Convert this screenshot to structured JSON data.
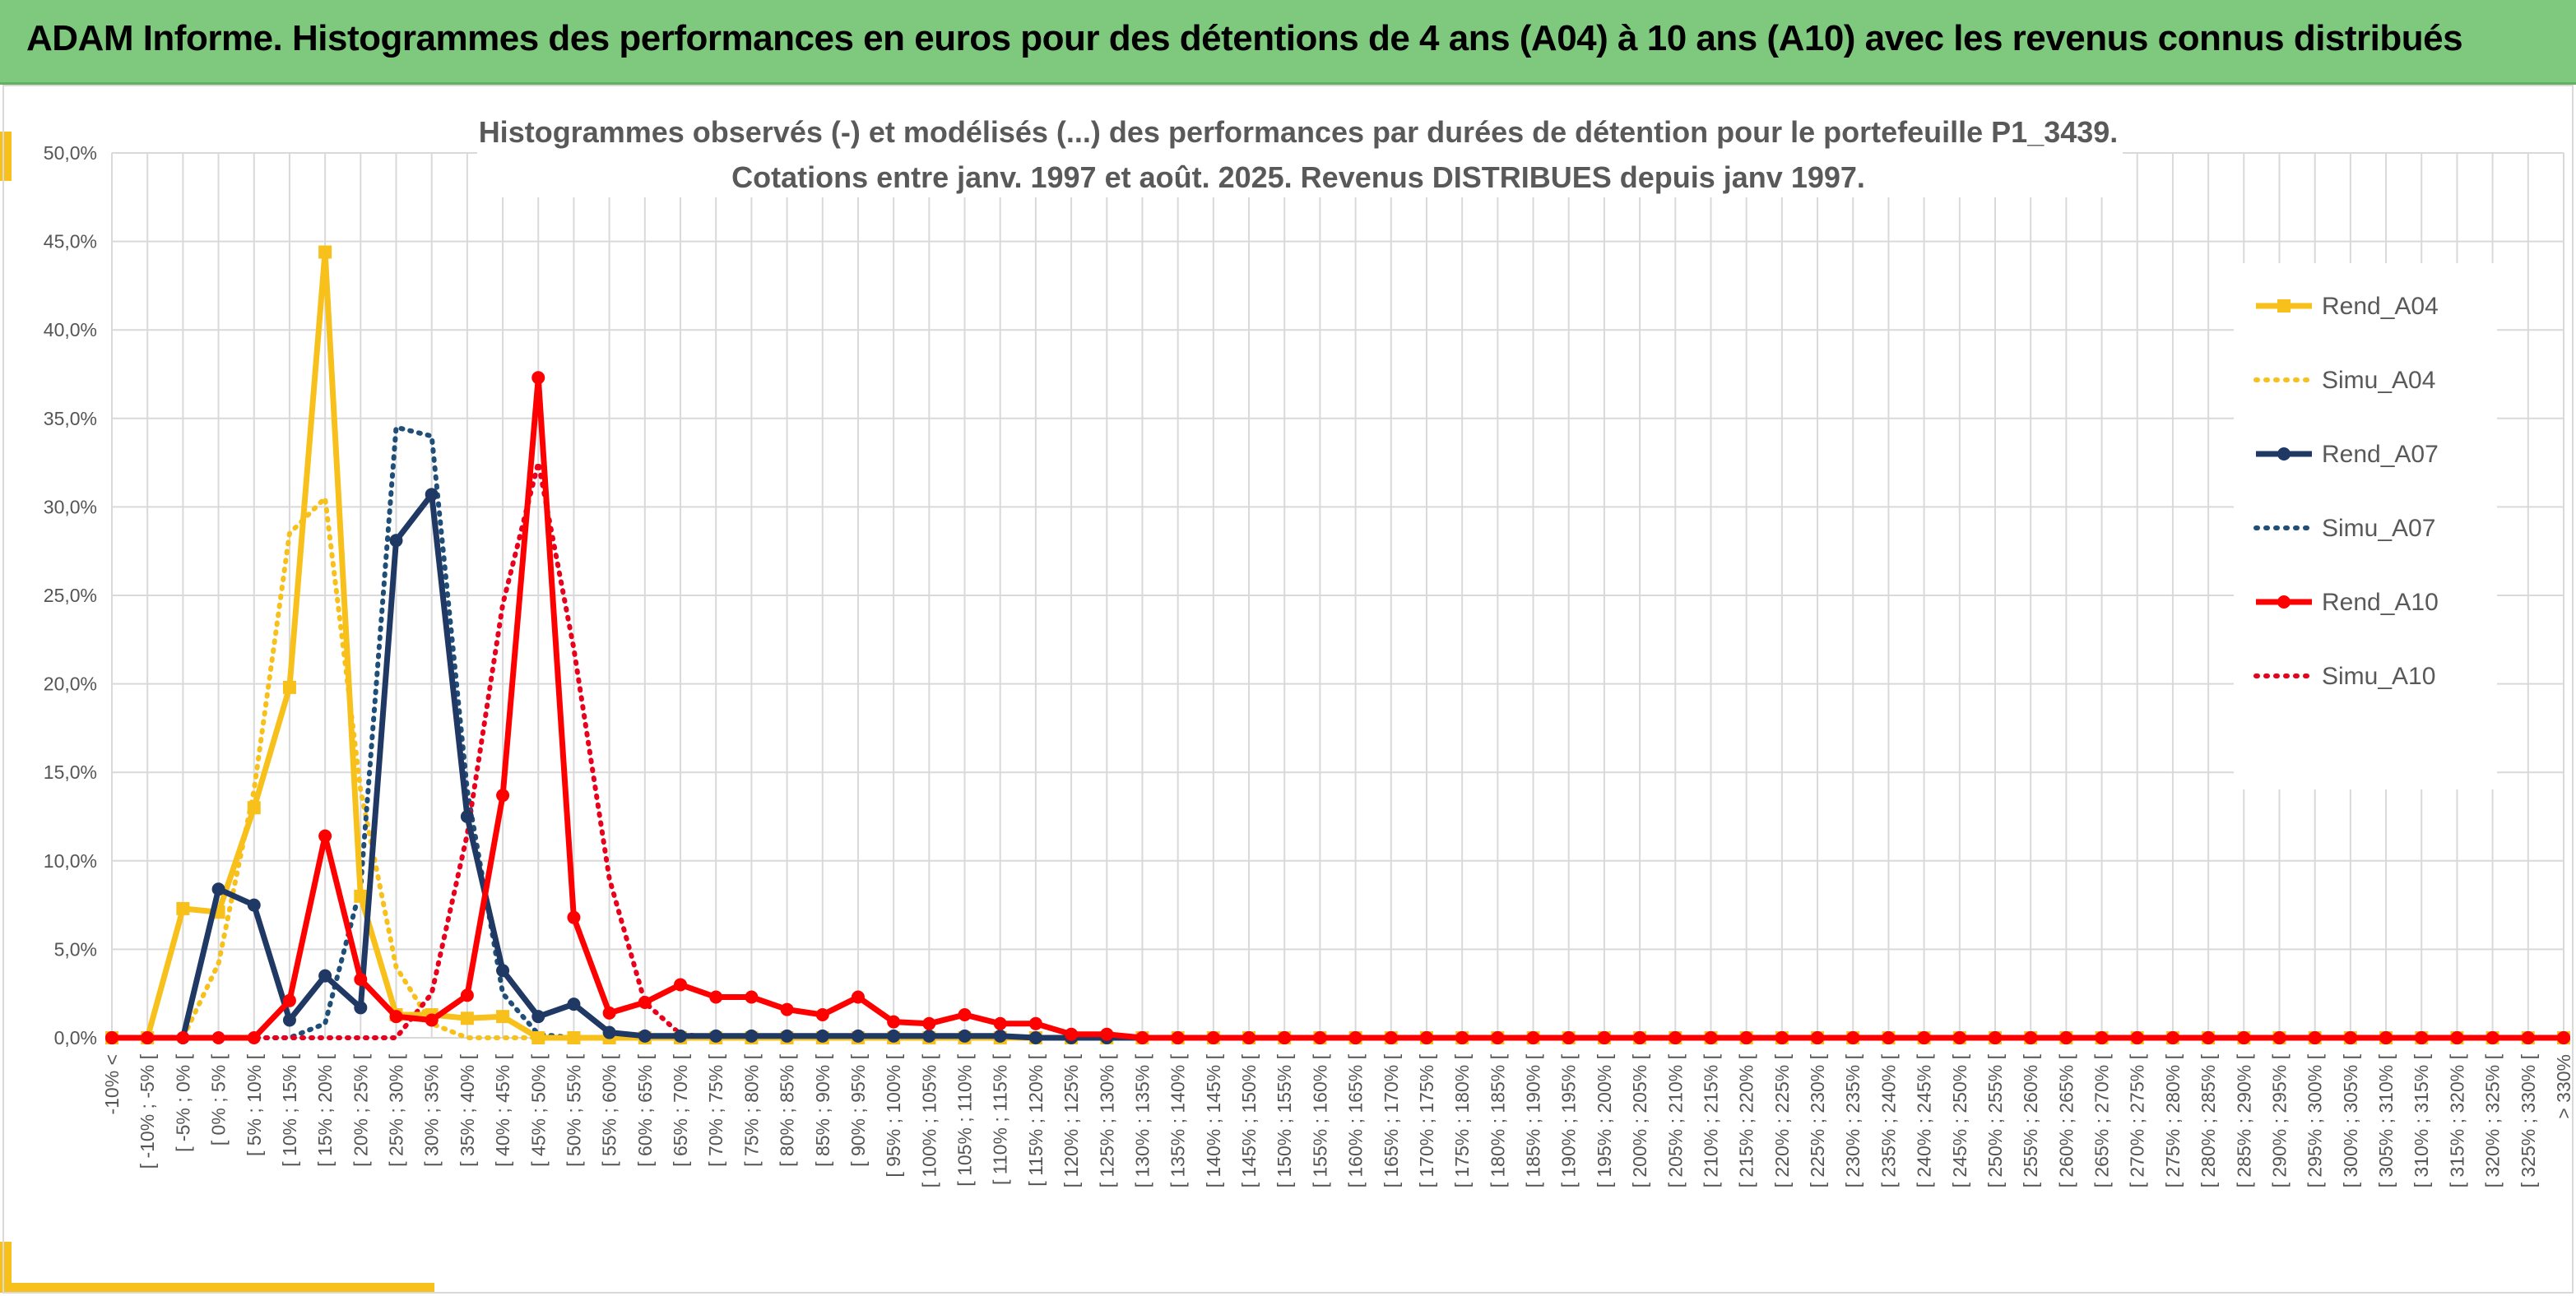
{
  "header": {
    "title": "ADAM Informe. Histogrammes des performances en euros pour des détentions de 4 ans (A04) à 10 ans (A10) avec les revenus connus distribués"
  },
  "chart_data": {
    "type": "line",
    "title_lines": [
      "Histogrammes observés (-) et modélisés (...) des performances par durées de détention pour le portefeuille P1_3439.",
      "Cotations entre janv. 1997 et août. 2025. Revenus DISTRIBUES depuis janv 1997."
    ],
    "ylim": [
      0,
      50
    ],
    "yticks": [
      0,
      5,
      10,
      15,
      20,
      25,
      30,
      35,
      40,
      45,
      50
    ],
    "ytick_labels": [
      "0,0%",
      "5,0%",
      "10,0%",
      "15,0%",
      "20,0%",
      "25,0%",
      "30,0%",
      "35,0%",
      "40,0%",
      "45,0%",
      "50,0%"
    ],
    "grid": true,
    "legend_position": "right",
    "categories": [
      "-10% <",
      "[ -10% ; -5% [",
      "[ -5% ; 0% [",
      "[ 0% ; 5% [",
      "[ 5% ; 10% [",
      "[ 10% ; 15% [",
      "[ 15% ; 20% [",
      "[ 20% ; 25% [",
      "[ 25% ; 30% [",
      "[ 30% ; 35% [",
      "[ 35% ; 40% [",
      "[ 40% ; 45% [",
      "[ 45% ; 50% [",
      "[ 50% ; 55% [",
      "[ 55% ; 60% [",
      "[ 60% ; 65% [",
      "[ 65% ; 70% [",
      "[ 70% ; 75% [",
      "[ 75% ; 80% [",
      "[ 80% ; 85% [",
      "[ 85% ; 90% [",
      "[ 90% ; 95% [",
      "[ 95% ; 100% [",
      "[ 100% ; 105% [",
      "[ 105% ; 110% [",
      "[ 110% ; 115% [",
      "[ 115% ; 120% [",
      "[ 120% ; 125% [",
      "[ 125% ; 130% [",
      "[ 130% ; 135% [",
      "[ 135% ; 140% [",
      "[ 140% ; 145% [",
      "[ 145% ; 150% [",
      "[ 150% ; 155% [",
      "[ 155% ; 160% [",
      "[ 160% ; 165% [",
      "[ 165% ; 170% [",
      "[ 170% ; 175% [",
      "[ 175% ; 180% [",
      "[ 180% ; 185% [",
      "[ 185% ; 190% [",
      "[ 190% ; 195% [",
      "[ 195% ; 200% [",
      "[ 200% ; 205% [",
      "[ 205% ; 210% [",
      "[ 210% ; 215% [",
      "[ 215% ; 220% [",
      "[ 220% ; 225% [",
      "[ 225% ; 230% [",
      "[ 230% ; 235% [",
      "[ 235% ; 240% [",
      "[ 240% ; 245% [",
      "[ 245% ; 250% [",
      "[ 250% ; 255% [",
      "[ 255% ; 260% [",
      "[ 260% ; 265% [",
      "[ 265% ; 270% [",
      "[ 270% ; 275% [",
      "[ 275% ; 280% [",
      "[ 280% ; 285% [",
      "[ 285% ; 290% [",
      "[ 290% ; 295% [",
      "[ 295% ; 300% [",
      "[ 300% ; 305% [",
      "[ 305% ; 310% [",
      "[ 310% ; 315% [",
      "[ 315% ; 320% [",
      "[ 320% ; 325% [",
      "[ 325% ; 330% [",
      "> 330%"
    ],
    "series": [
      {
        "name": "Rend_A04",
        "color": "#f7c01a",
        "style": "solid",
        "marker": "square",
        "values": [
          0,
          0,
          7.3,
          7.1,
          13.0,
          19.8,
          44.4,
          8.0,
          1.3,
          1.3,
          1.1,
          1.2,
          0,
          0,
          0,
          0,
          0,
          0,
          0,
          0,
          0,
          0,
          0,
          0,
          0,
          0,
          0,
          0,
          0,
          0,
          0,
          0,
          0,
          0,
          0,
          0,
          0,
          0,
          0,
          0,
          0,
          0,
          0,
          0,
          0,
          0,
          0,
          0,
          0,
          0,
          0,
          0,
          0,
          0,
          0,
          0,
          0,
          0,
          0,
          0,
          0,
          0,
          0,
          0,
          0,
          0,
          0,
          0,
          0,
          0
        ]
      },
      {
        "name": "Simu_A04",
        "color": "#f7c01a",
        "style": "dotted",
        "values": [
          0,
          0,
          0,
          4.2,
          14.0,
          28.5,
          30.5,
          14.0,
          4.0,
          0.8,
          0,
          0,
          0,
          0,
          0,
          0,
          0,
          0,
          0,
          0,
          0,
          0,
          0,
          0,
          0,
          0,
          0,
          0,
          0,
          0,
          0,
          0,
          0,
          0,
          0,
          0,
          0,
          0,
          0,
          0,
          0,
          0,
          0,
          0,
          0,
          0,
          0,
          0,
          0,
          0,
          0,
          0,
          0,
          0,
          0,
          0,
          0,
          0,
          0,
          0,
          0,
          0,
          0,
          0,
          0,
          0,
          0,
          0,
          0,
          0
        ]
      },
      {
        "name": "Rend_A07",
        "color": "#1f3864",
        "style": "solid",
        "marker": "circle",
        "values": [
          0,
          0,
          0,
          8.4,
          7.5,
          1.0,
          3.5,
          1.7,
          28.1,
          30.7,
          12.5,
          3.8,
          1.2,
          1.9,
          0.3,
          0.1,
          0.1,
          0.1,
          0.1,
          0.1,
          0.1,
          0.1,
          0.1,
          0.1,
          0.1,
          0.1,
          0,
          0,
          0,
          0,
          0,
          0,
          0,
          0,
          0,
          0,
          0,
          0,
          0,
          0,
          0,
          0,
          0,
          0,
          0,
          0,
          0,
          0,
          0,
          0,
          0,
          0,
          0,
          0,
          0,
          0,
          0,
          0,
          0,
          0,
          0,
          0,
          0,
          0,
          0,
          0,
          0,
          0,
          0,
          0
        ]
      },
      {
        "name": "Simu_A07",
        "color": "#1f4e79",
        "style": "dotted",
        "values": [
          0,
          0,
          0,
          0,
          0,
          0,
          0.8,
          8.5,
          34.5,
          34.0,
          14.0,
          2.5,
          0.2,
          0,
          0,
          0,
          0,
          0,
          0,
          0,
          0,
          0,
          0,
          0,
          0,
          0,
          0,
          0,
          0,
          0,
          0,
          0,
          0,
          0,
          0,
          0,
          0,
          0,
          0,
          0,
          0,
          0,
          0,
          0,
          0,
          0,
          0,
          0,
          0,
          0,
          0,
          0,
          0,
          0,
          0,
          0,
          0,
          0,
          0,
          0,
          0,
          0,
          0,
          0,
          0,
          0,
          0,
          0,
          0,
          0
        ]
      },
      {
        "name": "Rend_A10",
        "color": "#ff0000",
        "style": "solid",
        "marker": "circle",
        "values": [
          0,
          0,
          0,
          0,
          0,
          2.1,
          11.4,
          3.3,
          1.2,
          1.0,
          2.4,
          13.7,
          37.3,
          6.8,
          1.4,
          2.0,
          3.0,
          2.3,
          2.3,
          1.6,
          1.3,
          2.3,
          0.9,
          0.8,
          1.3,
          0.8,
          0.8,
          0.2,
          0.2,
          0,
          0,
          0,
          0,
          0,
          0,
          0,
          0,
          0,
          0,
          0,
          0,
          0,
          0,
          0,
          0,
          0,
          0,
          0,
          0,
          0,
          0,
          0,
          0,
          0,
          0,
          0,
          0,
          0,
          0,
          0,
          0,
          0,
          0,
          0,
          0,
          0,
          0,
          0,
          0,
          0
        ]
      },
      {
        "name": "Simu_A10",
        "color": "#e8001c",
        "style": "dotted",
        "values": [
          0,
          0,
          0,
          0,
          0,
          0,
          0,
          0,
          0,
          2.5,
          11.5,
          24.5,
          32.5,
          22.0,
          9.0,
          2.0,
          0.2,
          0,
          0,
          0,
          0,
          0,
          0,
          0,
          0,
          0,
          0,
          0,
          0,
          0,
          0,
          0,
          0,
          0,
          0,
          0,
          0,
          0,
          0,
          0,
          0,
          0,
          0,
          0,
          0,
          0,
          0,
          0,
          0,
          0,
          0,
          0,
          0,
          0,
          0,
          0,
          0,
          0,
          0,
          0,
          0,
          0,
          0,
          0,
          0,
          0,
          0,
          0,
          0,
          0
        ]
      }
    ]
  }
}
